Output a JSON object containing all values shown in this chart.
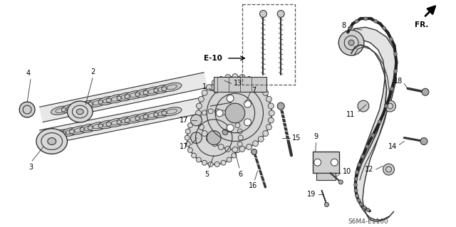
{
  "background_color": "#ffffff",
  "fig_width": 6.4,
  "fig_height": 3.19,
  "dpi": 100,
  "diagram_code": "S6M4-E1100",
  "label_fontsize": 7.0
}
